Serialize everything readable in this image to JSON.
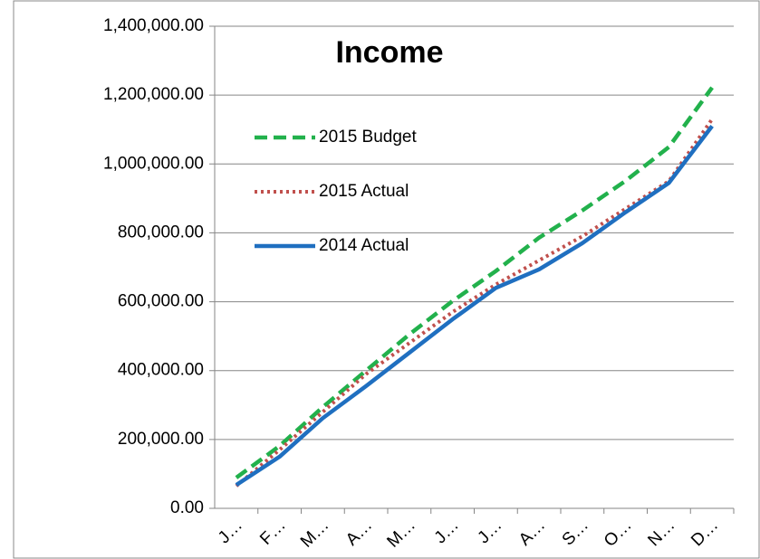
{
  "chart_data": {
    "type": "line",
    "title": "Income",
    "categories": [
      "J…",
      "F…",
      "M…",
      "A…",
      "M…",
      "J…",
      "J…",
      "A…",
      "S…",
      "O…",
      "N…",
      "D…"
    ],
    "series": [
      {
        "name": "2015 Budget",
        "color": "#22b14c",
        "line_style": "dashed",
        "values": [
          89000,
          181000,
          294000,
          400000,
          505000,
          602000,
          689000,
          786000,
          865000,
          951000,
          1049000,
          1222000
        ]
      },
      {
        "name": "2015 Actual",
        "color": "#c0504d",
        "line_style": "dotted",
        "values": [
          65000,
          170000,
          280000,
          390000,
          480000,
          570000,
          650000,
          720000,
          790000,
          870000,
          950000,
          1130000
        ]
      },
      {
        "name": "2014 Actual",
        "color": "#1f6fc0",
        "line_style": "solid",
        "values": [
          68000,
          150000,
          262000,
          355000,
          452000,
          549000,
          640000,
          694000,
          770000,
          860000,
          945000,
          1110000
        ]
      }
    ],
    "ylim": [
      0,
      1400000
    ],
    "yticks": [
      {
        "value": 0,
        "label": "0.00"
      },
      {
        "value": 200000,
        "label": "200,000.00"
      },
      {
        "value": 400000,
        "label": "400,000.00"
      },
      {
        "value": 600000,
        "label": "600,000.00"
      },
      {
        "value": 800000,
        "label": "800,000.00"
      },
      {
        "value": 1000000,
        "label": "1,000,000.00"
      },
      {
        "value": 1200000,
        "label": "1,200,000.00"
      },
      {
        "value": 1400000,
        "label": "1,400,000.00"
      }
    ],
    "grid": true,
    "legend": "upper left"
  }
}
